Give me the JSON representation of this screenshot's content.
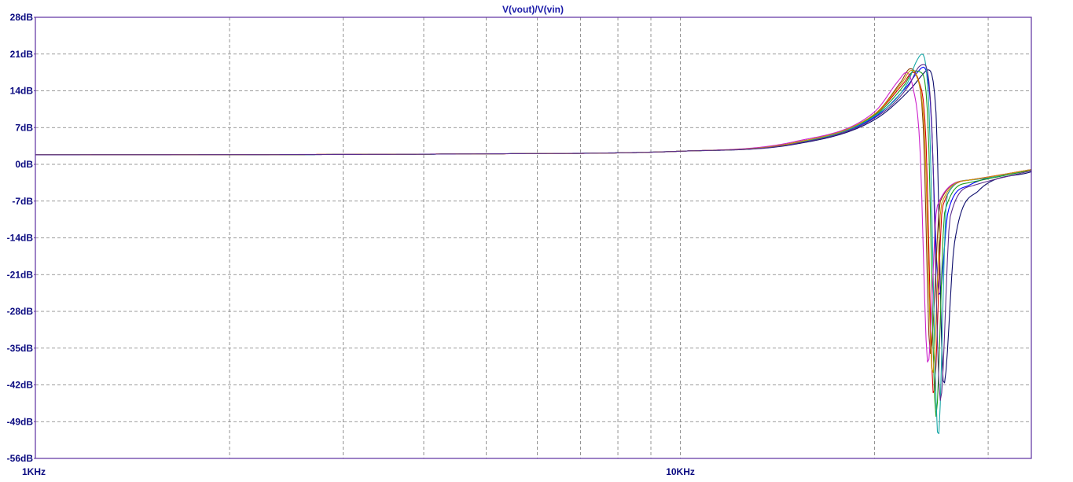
{
  "chart_data": {
    "type": "line",
    "title": "V(vout)/V(vin)",
    "xscale": "log",
    "xlim": [
      1000,
      35000
    ],
    "ylim": [
      -56,
      28
    ],
    "x_ticks": [
      "1KHz",
      "10KHz"
    ],
    "y_ticks": [
      "28dB",
      "21dB",
      "14dB",
      "7dB",
      "0dB",
      "-7dB",
      "-14dB",
      "-21dB",
      "-28dB",
      "-35dB",
      "-42dB",
      "-49dB",
      "-56dB"
    ],
    "grid": true,
    "colors": {
      "frame": "#5c2ea0",
      "grid": "#7a7a7a",
      "tick_label": "#0a0a80",
      "title": "#1a1aa8",
      "background": "#ffffff"
    },
    "series": [
      {
        "color": "#0000ff",
        "x": [
          1000,
          5000,
          10000,
          15000,
          20000,
          22500,
          23300,
          23800,
          24400,
          25200,
          26000,
          28000,
          35000
        ],
        "y": [
          1.8,
          2.0,
          2.5,
          4.0,
          9.0,
          15.0,
          17.5,
          18.5,
          12.0,
          -25.0,
          -9.0,
          -4.0,
          -1.0
        ]
      },
      {
        "color": "#0b0b6b",
        "x": [
          1000,
          5000,
          10000,
          15000,
          20000,
          22800,
          23700,
          24200,
          24900,
          25600,
          26600,
          29000,
          35000
        ],
        "y": [
          1.8,
          2.0,
          2.5,
          3.8,
          8.5,
          14.5,
          17.0,
          18.0,
          10.0,
          -42.0,
          -15.0,
          -5.0,
          -1.4
        ]
      },
      {
        "color": "#d40000",
        "x": [
          1000,
          5000,
          10000,
          15000,
          20000,
          22200,
          22900,
          23400,
          24000,
          24700,
          25500,
          28000,
          35000
        ],
        "y": [
          1.8,
          2.0,
          2.5,
          4.1,
          9.5,
          15.5,
          17.5,
          16.0,
          6.0,
          -44.0,
          -8.0,
          -3.0,
          -1.0
        ]
      },
      {
        "color": "#8b3a0a",
        "x": [
          1000,
          5000,
          10000,
          15000,
          20000,
          22000,
          22700,
          23200,
          23800,
          24400,
          25300,
          28000,
          35000
        ],
        "y": [
          1.8,
          2.0,
          2.5,
          4.1,
          9.5,
          15.8,
          18.2,
          17.0,
          7.0,
          -36.0,
          -7.0,
          -3.0,
          -1.0
        ]
      },
      {
        "color": "#1a9e1a",
        "x": [
          1000,
          5000,
          10000,
          15000,
          20000,
          22300,
          23000,
          23600,
          24200,
          24900,
          25700,
          28000,
          35000
        ],
        "y": [
          1.8,
          2.0,
          2.5,
          4.0,
          9.3,
          15.3,
          17.8,
          17.5,
          8.0,
          -48.0,
          -9.0,
          -3.5,
          -1.1
        ]
      },
      {
        "color": "#17a6a6",
        "x": [
          1000,
          5000,
          10000,
          15000,
          20000,
          22500,
          23200,
          23700,
          24300,
          25100,
          25900,
          28000,
          35000
        ],
        "y": [
          1.8,
          2.0,
          2.5,
          4.0,
          9.2,
          15.5,
          19.5,
          21.0,
          10.0,
          -52.0,
          -6.0,
          -3.0,
          -1.0
        ]
      },
      {
        "color": "#cc22cc",
        "x": [
          1000,
          5000,
          10000,
          15000,
          20000,
          21800,
          22400,
          22900,
          23500,
          24200,
          25000,
          28000,
          35000
        ],
        "y": [
          1.8,
          2.0,
          2.5,
          4.3,
          10.0,
          16.0,
          17.5,
          15.0,
          4.0,
          -38.0,
          -8.0,
          -3.0,
          -1.0
        ]
      },
      {
        "color": "#c89b00",
        "x": [
          1000,
          5000,
          10000,
          15000,
          20000,
          22100,
          22800,
          23300,
          23900,
          24600,
          25400,
          28000,
          35000
        ],
        "y": [
          1.8,
          2.0,
          2.5,
          4.1,
          9.6,
          15.7,
          17.9,
          16.5,
          6.0,
          -40.0,
          -7.5,
          -3.0,
          -1.0
        ]
      },
      {
        "color": "#5a2d8c",
        "x": [
          1000,
          5000,
          10000,
          15000,
          20000,
          22600,
          23400,
          23900,
          24500,
          25300,
          26200,
          28500,
          35000
        ],
        "y": [
          1.8,
          2.0,
          2.5,
          3.9,
          8.8,
          15.0,
          18.5,
          19.0,
          9.0,
          -45.0,
          -10.0,
          -4.0,
          -1.2
        ]
      }
    ]
  }
}
